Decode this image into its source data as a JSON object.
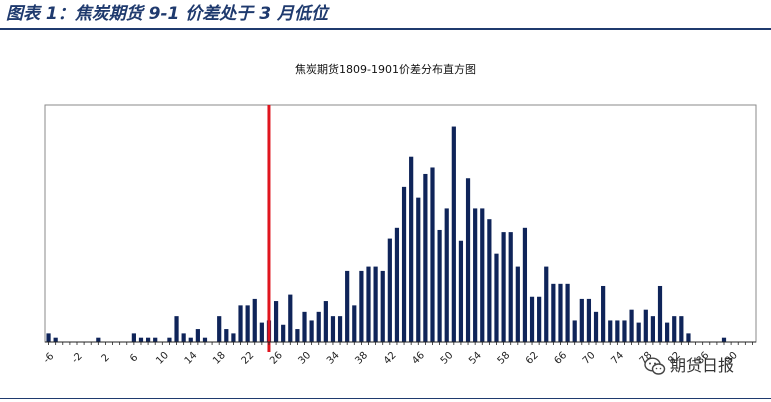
{
  "figure_title": "图表 1：焦炭期货 9-1 价差处于 3 月低位",
  "watermark": {
    "text": "期货日报",
    "icon": "wechat-icon"
  },
  "colors": {
    "bar": "#0f2459",
    "marker": "#e0141e",
    "title": "#1f3a6e"
  },
  "chart_data": {
    "type": "bar",
    "title": "焦炭期货1809-1901价差分布直方图",
    "xlabel": "",
    "ylabel": "",
    "categories": [
      -6,
      -5,
      -4,
      -3,
      -2,
      -1,
      0,
      1,
      2,
      3,
      4,
      5,
      6,
      7,
      8,
      9,
      10,
      11,
      12,
      13,
      14,
      15,
      16,
      17,
      18,
      19,
      20,
      21,
      22,
      23,
      24,
      25,
      26,
      27,
      28,
      29,
      30,
      31,
      32,
      33,
      34,
      35,
      36,
      37,
      38,
      39,
      40,
      41,
      42,
      43,
      44,
      45,
      46,
      47,
      48,
      49,
      50,
      51,
      52,
      53,
      54,
      55,
      56,
      57,
      58,
      59,
      60,
      61,
      62,
      63,
      64,
      65,
      66,
      67,
      68,
      69,
      70,
      71,
      72,
      73,
      74,
      75,
      76,
      77,
      78,
      79,
      80,
      81,
      82,
      83,
      84,
      85,
      86,
      87,
      88,
      89,
      90,
      91,
      92,
      93
    ],
    "values": [
      4,
      2,
      0,
      0,
      0,
      0,
      0,
      2,
      0,
      0,
      0,
      0,
      4,
      2,
      2,
      2,
      0,
      2,
      12,
      4,
      2,
      6,
      2,
      0,
      12,
      6,
      4,
      17,
      17,
      20,
      9,
      10,
      19,
      8,
      22,
      6,
      14,
      10,
      14,
      19,
      12,
      12,
      33,
      17,
      33,
      35,
      35,
      33,
      48,
      53,
      72,
      86,
      67,
      78,
      81,
      52,
      62,
      100,
      47,
      76,
      62,
      62,
      57,
      41,
      51,
      51,
      35,
      53,
      21,
      21,
      35,
      27,
      27,
      27,
      10,
      20,
      20,
      14,
      26,
      10,
      10,
      10,
      15,
      9,
      15,
      12,
      26,
      9,
      12,
      12,
      4,
      0,
      0,
      0,
      0,
      2,
      0,
      0,
      0,
      0
    ],
    "xticks": [
      -6,
      -2,
      2,
      6,
      10,
      14,
      18,
      22,
      26,
      30,
      34,
      38,
      42,
      46,
      50,
      54,
      58,
      62,
      66,
      70,
      74,
      78,
      82,
      86,
      90
    ],
    "marker_line_x": 25,
    "xlim": [
      -6,
      93
    ],
    "ylim": [
      0,
      110
    ],
    "grid": false,
    "legend": "none"
  }
}
